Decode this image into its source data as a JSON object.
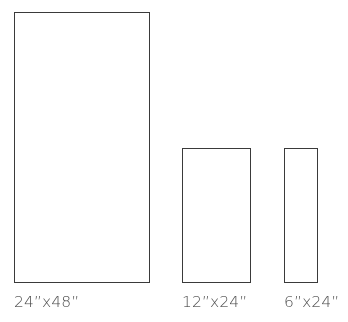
{
  "tiles": [
    {
      "label": "24”x48”"
    },
    {
      "label": "12”x24”"
    },
    {
      "label": "6”x24”"
    }
  ],
  "colors": {
    "outline": "#3a3a3a",
    "text": "#4a4a4a",
    "background": "#ffffff"
  }
}
